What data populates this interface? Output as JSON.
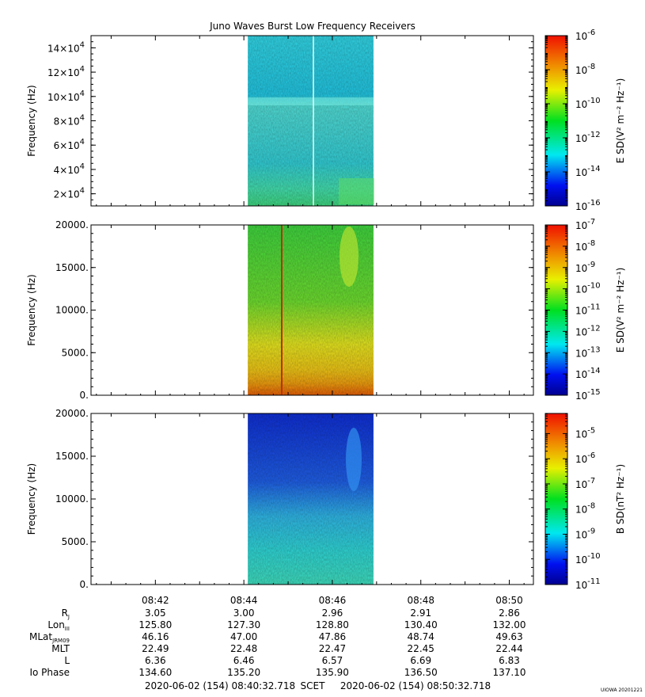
{
  "chart_data": {
    "title": "Juno Waves Burst Low Frequency Receivers",
    "type": "heatmap",
    "x_axis": {
      "ticks": [
        "08:42",
        "08:44",
        "08:46",
        "08:48",
        "08:50"
      ],
      "range_minutes": [
        40.545,
        50.545
      ],
      "data_start_minute": 44.09,
      "data_end_minute": 46.93,
      "start_label": "2020-06-02 (154) 08:40:32.718",
      "scet_label": "SCET",
      "end_label": "2020-06-02 (154) 08:50:32.718"
    },
    "panels": [
      {
        "ylabel": "Frequency (Hz)",
        "ylim": [
          10000,
          150000
        ],
        "yticks": [
          {
            "value": 20000,
            "base": "2×10",
            "exp": "4"
          },
          {
            "value": 40000,
            "base": "4×10",
            "exp": "4"
          },
          {
            "value": 60000,
            "base": "6×10",
            "exp": "4"
          },
          {
            "value": 80000,
            "base": "8×10",
            "exp": "4"
          },
          {
            "value": 100000,
            "base": "10×10",
            "exp": "4"
          },
          {
            "value": 120000,
            "base": "12×10",
            "exp": "4"
          },
          {
            "value": 140000,
            "base": "14×10",
            "exp": "4"
          }
        ],
        "colorbar": {
          "label": "E SD(V² m⁻² Hz⁻¹)",
          "log_range": [
            -16,
            -6
          ],
          "ticks": [
            {
              "exp": "-6",
              "value": -6
            },
            {
              "exp": "-8",
              "value": -8
            },
            {
              "exp": "-10",
              "value": -10
            },
            {
              "exp": "-12",
              "value": -12
            },
            {
              "exp": "-14",
              "value": -14
            },
            {
              "exp": "-16",
              "value": -16
            }
          ]
        }
      },
      {
        "ylabel": "Frequency (Hz)",
        "ylim": [
          0,
          20000
        ],
        "yticks": [
          {
            "value": 0,
            "label": "0."
          },
          {
            "value": 5000,
            "label": "5000."
          },
          {
            "value": 10000,
            "label": "10000."
          },
          {
            "value": 15000,
            "label": "15000."
          },
          {
            "value": 20000,
            "label": "20000."
          }
        ],
        "colorbar": {
          "label": "E SD(V² m⁻² Hz⁻¹)",
          "log_range": [
            -15,
            -7
          ],
          "ticks": [
            {
              "exp": "-7",
              "value": -7
            },
            {
              "exp": "-8",
              "value": -8
            },
            {
              "exp": "-9",
              "value": -9
            },
            {
              "exp": "-10",
              "value": -10
            },
            {
              "exp": "-11",
              "value": -11
            },
            {
              "exp": "-12",
              "value": -12
            },
            {
              "exp": "-13",
              "value": -13
            },
            {
              "exp": "-14",
              "value": -14
            },
            {
              "exp": "-15",
              "value": -15
            }
          ]
        }
      },
      {
        "ylabel": "Frequency (Hz)",
        "ylim": [
          0,
          20000
        ],
        "yticks": [
          {
            "value": 0,
            "label": "0."
          },
          {
            "value": 5000,
            "label": "5000."
          },
          {
            "value": 10000,
            "label": "10000."
          },
          {
            "value": 15000,
            "label": "15000."
          },
          {
            "value": 20000,
            "label": "20000."
          }
        ],
        "colorbar": {
          "label": "B SD(nT² Hz⁻¹)",
          "log_range": [
            -11,
            -4.2
          ],
          "ticks": [
            {
              "exp": "-5",
              "value": -5
            },
            {
              "exp": "-6",
              "value": -6
            },
            {
              "exp": "-7",
              "value": -7
            },
            {
              "exp": "-8",
              "value": -8
            },
            {
              "exp": "-9",
              "value": -9
            },
            {
              "exp": "-10",
              "value": -10
            },
            {
              "exp": "-11",
              "value": -11
            }
          ]
        }
      }
    ],
    "ephemeris": {
      "rows": [
        {
          "label": "R",
          "sub": "J",
          "values": [
            "3.05",
            "3.00",
            "2.96",
            "2.91",
            "2.86"
          ]
        },
        {
          "label": "Lon",
          "sub": "III",
          "values": [
            "125.80",
            "127.30",
            "128.80",
            "130.40",
            "132.00"
          ]
        },
        {
          "label": "MLat",
          "sub": "JRM09",
          "values": [
            "46.16",
            "47.00",
            "47.86",
            "48.74",
            "49.63"
          ]
        },
        {
          "label": "MLT",
          "sub": "",
          "values": [
            "22.49",
            "22.48",
            "22.47",
            "22.45",
            "22.44"
          ]
        },
        {
          "label": "L",
          "sub": "",
          "values": [
            "6.36",
            "6.46",
            "6.57",
            "6.69",
            "6.83"
          ]
        },
        {
          "label": "Io Phase",
          "sub": "",
          "values": [
            "134.60",
            "135.20",
            "135.90",
            "136.50",
            "137.10"
          ]
        }
      ]
    },
    "credit": "UIOWA 20201221"
  }
}
